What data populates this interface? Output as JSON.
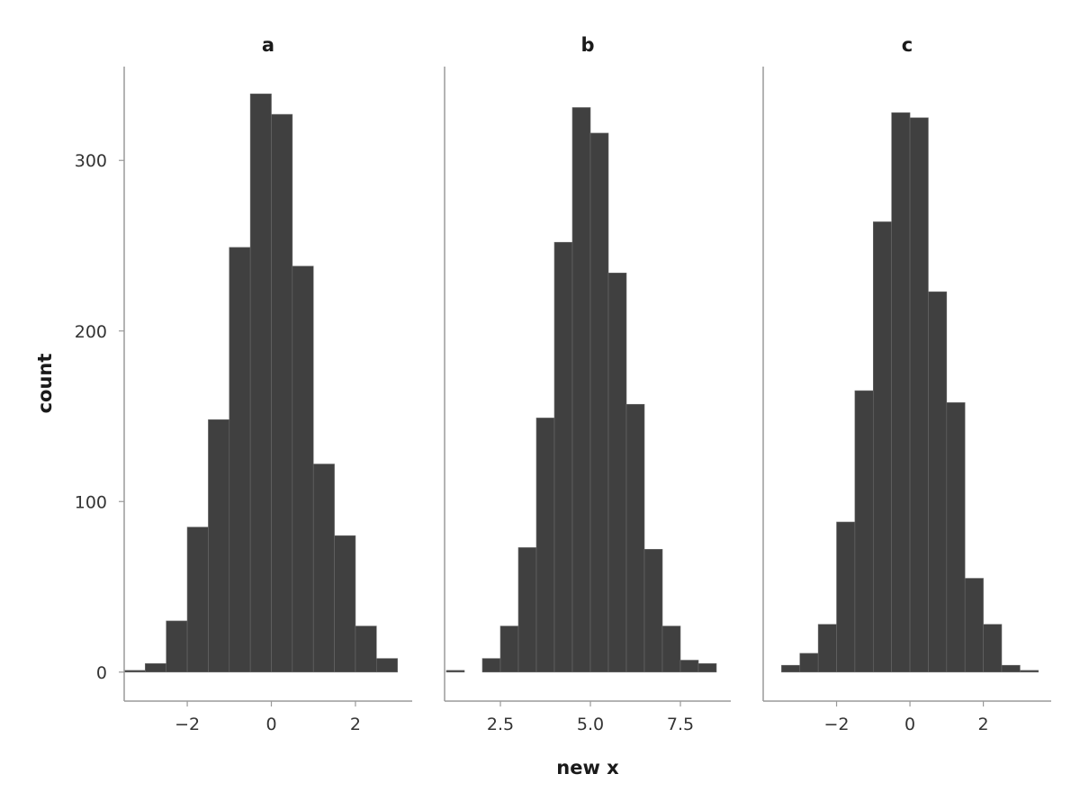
{
  "chart_data": {
    "type": "bar",
    "subtype": "histogram",
    "xlabel": "new x",
    "ylabel": "count",
    "ylim": [
      -17,
      355
    ],
    "y_ticks": [
      0,
      100,
      200,
      300
    ],
    "y_tick_labels": [
      "0",
      "100",
      "200",
      "300"
    ],
    "bar_color": "#404040",
    "grid": false,
    "legend": "none",
    "panels": [
      {
        "title": "a",
        "xlim": [
          -3.5,
          3.35
        ],
        "x_ticks": [
          -2,
          0,
          2
        ],
        "x_tick_labels": [
          "−2",
          "0",
          "2"
        ],
        "bin_edges": [
          -3.5,
          -3.0,
          -2.5,
          -2.0,
          -1.5,
          -1.0,
          -0.5,
          0.0,
          0.5,
          1.0,
          1.5,
          2.0,
          2.5,
          3.0
        ],
        "counts": [
          1,
          5,
          30,
          85,
          148,
          249,
          339,
          327,
          238,
          122,
          80,
          27,
          8
        ]
      },
      {
        "title": "b",
        "xlim": [
          0.95,
          8.9
        ],
        "x_ticks": [
          2.5,
          5.0,
          7.5
        ],
        "x_tick_labels": [
          "2.5",
          "5.0",
          "7.5"
        ],
        "bin_edges": [
          1.0,
          1.5,
          2.0,
          2.5,
          3.0,
          3.5,
          4.0,
          4.5,
          5.0,
          5.5,
          6.0,
          6.5,
          7.0,
          7.5,
          8.0,
          8.5
        ],
        "counts": [
          1,
          0,
          8,
          27,
          73,
          149,
          252,
          331,
          316,
          234,
          157,
          72,
          27,
          7,
          5
        ]
      },
      {
        "title": "c",
        "xlim": [
          -4.0,
          3.85
        ],
        "x_ticks": [
          -2,
          0,
          2
        ],
        "x_tick_labels": [
          "−2",
          "0",
          "2"
        ],
        "bin_edges": [
          -3.5,
          -3.0,
          -2.5,
          -2.0,
          -1.5,
          -1.0,
          -0.5,
          0.0,
          0.5,
          1.0,
          1.5,
          2.0,
          2.5,
          3.0,
          3.5
        ],
        "counts": [
          4,
          11,
          28,
          88,
          165,
          264,
          328,
          325,
          223,
          158,
          55,
          28,
          4,
          1
        ]
      }
    ]
  }
}
